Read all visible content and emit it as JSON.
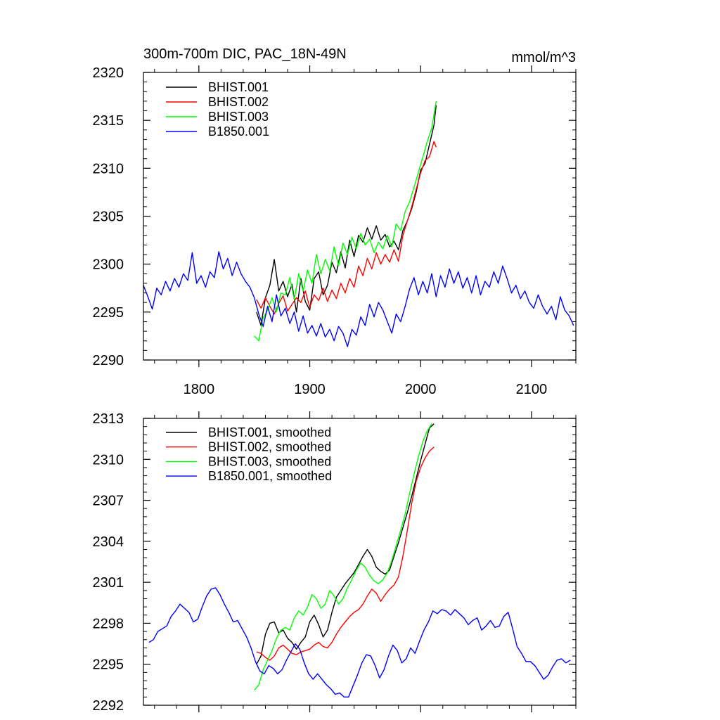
{
  "chart_data": [
    {
      "type": "line",
      "title": "300m-700m DIC, PAC_18N-49N",
      "units": "mmol/m^3",
      "xlim": [
        1750,
        2140
      ],
      "ylim": [
        2290,
        2320
      ],
      "xticks": [
        1800,
        1900,
        2000,
        2100
      ],
      "xtick_labels": [
        "1800",
        "1900",
        "2000",
        "2100"
      ],
      "yticks": [
        2290,
        2295,
        2300,
        2305,
        2310,
        2315,
        2320
      ],
      "ytick_labels": [
        "2290",
        "2295",
        "2300",
        "2305",
        "2310",
        "2315",
        "2320"
      ],
      "legend_position": "top-left",
      "series": [
        {
          "name": "BHIST.001",
          "color": "#000000",
          "x": [
            1852,
            1856,
            1860,
            1864,
            1868,
            1872,
            1876,
            1880,
            1884,
            1888,
            1892,
            1896,
            1900,
            1904,
            1908,
            1912,
            1916,
            1920,
            1924,
            1928,
            1932,
            1936,
            1940,
            1944,
            1948,
            1952,
            1956,
            1960,
            1964,
            1968,
            1972,
            1976,
            1980,
            1984,
            1988,
            1992,
            1996,
            2000,
            2004,
            2008,
            2012,
            2014
          ],
          "y": [
            2295.0,
            2293.6,
            2296.5,
            2297.8,
            2300.5,
            2297.2,
            2298.2,
            2296.6,
            2297.9,
            2295.0,
            2298.5,
            2296.1,
            2295.2,
            2298.5,
            2299.2,
            2296.8,
            2297.8,
            2300.2,
            2299.1,
            2301.3,
            2299.6,
            2302.5,
            2300.8,
            2303.0,
            2302.3,
            2303.8,
            2302.6,
            2304.0,
            2302.5,
            2303.1,
            2301.8,
            2302.4,
            2301.5,
            2303.5,
            2304.5,
            2305.8,
            2307.5,
            2309.8,
            2310.5,
            2312.5,
            2314.5,
            2316.6
          ]
        },
        {
          "name": "BHIST.002",
          "color": "#ff0000",
          "x": [
            1852,
            1856,
            1860,
            1864,
            1868,
            1872,
            1876,
            1880,
            1884,
            1888,
            1892,
            1896,
            1900,
            1904,
            1908,
            1912,
            1916,
            1920,
            1924,
            1928,
            1932,
            1936,
            1940,
            1944,
            1948,
            1952,
            1956,
            1960,
            1964,
            1968,
            1972,
            1976,
            1980,
            1984,
            1988,
            1992,
            1996,
            2000,
            2004,
            2008,
            2012,
            2014
          ],
          "y": [
            2296.3,
            2295.4,
            2296.5,
            2295.6,
            2294.8,
            2295.9,
            2296.7,
            2295.1,
            2295.8,
            2296.5,
            2296.0,
            2297.2,
            2295.5,
            2296.8,
            2296.2,
            2297.5,
            2296.1,
            2297.3,
            2296.4,
            2298.0,
            2297.0,
            2298.5,
            2297.6,
            2299.8,
            2298.8,
            2300.6,
            2299.5,
            2301.2,
            2300.0,
            2301.0,
            2300.2,
            2301.5,
            2300.3,
            2303.0,
            2304.5,
            2306.0,
            2307.8,
            2309.5,
            2310.8,
            2311.2,
            2312.8,
            2312.2
          ]
        },
        {
          "name": "BHIST.003",
          "color": "#00ff00",
          "x": [
            1850,
            1854,
            1858,
            1862,
            1866,
            1870,
            1874,
            1878,
            1882,
            1886,
            1890,
            1894,
            1898,
            1902,
            1906,
            1910,
            1914,
            1918,
            1922,
            1926,
            1930,
            1934,
            1938,
            1942,
            1946,
            1950,
            1954,
            1958,
            1962,
            1966,
            1970,
            1974,
            1978,
            1982,
            1986,
            1990,
            1994,
            1998,
            2002,
            2006,
            2010,
            2014
          ],
          "y": [
            2292.5,
            2292.0,
            2294.4,
            2295.2,
            2296.5,
            2295.0,
            2297.0,
            2296.8,
            2298.6,
            2296.3,
            2299.0,
            2297.2,
            2299.4,
            2298.0,
            2301.0,
            2299.0,
            2300.5,
            2299.3,
            2301.8,
            2299.8,
            2302.2,
            2301.0,
            2302.8,
            2301.6,
            2303.2,
            2302.0,
            2302.6,
            2301.2,
            2302.3,
            2301.6,
            2303.0,
            2301.8,
            2304.2,
            2303.5,
            2305.5,
            2306.5,
            2308.0,
            2309.6,
            2311.2,
            2312.8,
            2314.2,
            2317.0
          ]
        },
        {
          "name": "B1850.001",
          "color": "#0000ff",
          "x": [
            1750,
            1754,
            1758,
            1762,
            1766,
            1770,
            1774,
            1778,
            1782,
            1786,
            1790,
            1794,
            1798,
            1802,
            1806,
            1810,
            1814,
            1818,
            1822,
            1826,
            1830,
            1834,
            1838,
            1842,
            1846,
            1850,
            1854,
            1858,
            1862,
            1866,
            1870,
            1874,
            1878,
            1882,
            1886,
            1890,
            1894,
            1898,
            1902,
            1906,
            1910,
            1914,
            1918,
            1922,
            1926,
            1930,
            1934,
            1938,
            1942,
            1946,
            1950,
            1954,
            1958,
            1962,
            1966,
            1970,
            1974,
            1978,
            1982,
            1986,
            1990,
            1994,
            1998,
            2002,
            2006,
            2010,
            2014,
            2018,
            2022,
            2026,
            2030,
            2034,
            2038,
            2042,
            2046,
            2050,
            2054,
            2058,
            2062,
            2066,
            2070,
            2074,
            2078,
            2082,
            2086,
            2090,
            2094,
            2098,
            2102,
            2106,
            2110,
            2114,
            2118,
            2122,
            2126,
            2130,
            2134,
            2138
          ],
          "y": [
            2297.8,
            2296.6,
            2295.3,
            2297.5,
            2296.8,
            2298.2,
            2297.2,
            2298.5,
            2297.6,
            2299.0,
            2298.3,
            2301.2,
            2298.0,
            2298.8,
            2297.6,
            2299.2,
            2298.6,
            2301.3,
            2299.5,
            2300.6,
            2298.8,
            2300.2,
            2299.0,
            2298.2,
            2297.6,
            2296.5,
            2294.8,
            2293.5,
            2295.6,
            2294.0,
            2296.8,
            2294.6,
            2295.4,
            2293.8,
            2295.0,
            2293.0,
            2294.6,
            2292.8,
            2293.6,
            2292.5,
            2293.8,
            2292.4,
            2293.2,
            2292.0,
            2293.5,
            2292.8,
            2291.4,
            2293.2,
            2292.6,
            2294.5,
            2293.6,
            2295.8,
            2294.5,
            2296.0,
            2295.2,
            2294.0,
            2292.8,
            2294.8,
            2294.0,
            2295.6,
            2297.4,
            2298.6,
            2296.8,
            2298.2,
            2297.0,
            2299.0,
            2296.6,
            2298.8,
            2297.6,
            2299.5,
            2298.0,
            2299.2,
            2297.5,
            2298.6,
            2297.0,
            2298.8,
            2296.8,
            2298.2,
            2297.6,
            2299.2,
            2298.0,
            2299.8,
            2298.5,
            2297.0,
            2297.8,
            2296.4,
            2297.2,
            2296.0,
            2295.4,
            2296.8,
            2295.6,
            2294.8,
            2295.6,
            2294.2,
            2296.6,
            2295.2,
            2294.6,
            2293.6
          ]
        }
      ]
    },
    {
      "type": "line",
      "title": "",
      "units": "",
      "xlim": [
        1750,
        2140
      ],
      "ylim": [
        2292,
        2313
      ],
      "xticks": [
        1800,
        1900,
        2000,
        2100
      ],
      "xtick_labels": [],
      "yticks": [
        2292,
        2295,
        2298,
        2301,
        2304,
        2307,
        2310,
        2313
      ],
      "ytick_labels": [
        "2292",
        "2295",
        "2298",
        "2301",
        "2304",
        "2307",
        "2310",
        "2313"
      ],
      "legend_position": "top-left",
      "series": [
        {
          "name": "BHIST.001, smoothed",
          "color": "#000000",
          "x": [
            1852,
            1856,
            1860,
            1864,
            1868,
            1872,
            1876,
            1880,
            1884,
            1888,
            1892,
            1896,
            1900,
            1904,
            1908,
            1912,
            1916,
            1920,
            1924,
            1928,
            1932,
            1936,
            1940,
            1944,
            1948,
            1952,
            1956,
            1960,
            1964,
            1968,
            1972,
            1976,
            1980,
            1984,
            1988,
            1992,
            1996,
            2000,
            2004,
            2008,
            2012
          ],
          "y": [
            2295.0,
            2295.6,
            2297.2,
            2298.0,
            2298.1,
            2297.3,
            2297.5,
            2296.9,
            2296.6,
            2296.1,
            2296.6,
            2297.0,
            2298.1,
            2298.6,
            2297.9,
            2297.0,
            2297.5,
            2298.8,
            2299.9,
            2300.4,
            2300.9,
            2301.3,
            2301.7,
            2302.3,
            2302.9,
            2303.4,
            2302.9,
            2302.1,
            2301.8,
            2301.6,
            2301.9,
            2302.9,
            2303.9,
            2305.0,
            2306.1,
            2307.3,
            2308.6,
            2309.9,
            2311.1,
            2312.3,
            2312.6
          ]
        },
        {
          "name": "BHIST.002, smoothed",
          "color": "#ff0000",
          "x": [
            1852,
            1856,
            1860,
            1864,
            1868,
            1872,
            1876,
            1880,
            1884,
            1888,
            1892,
            1896,
            1900,
            1904,
            1908,
            1912,
            1916,
            1920,
            1924,
            1928,
            1932,
            1936,
            1940,
            1944,
            1948,
            1952,
            1956,
            1960,
            1964,
            1968,
            1972,
            1976,
            1980,
            1984,
            1988,
            1992,
            1996,
            2000,
            2004,
            2008,
            2012
          ],
          "y": [
            2295.9,
            2295.8,
            2295.5,
            2295.3,
            2295.6,
            2296.2,
            2296.4,
            2296.1,
            2295.8,
            2295.7,
            2295.9,
            2296.0,
            2296.1,
            2296.4,
            2296.6,
            2296.3,
            2296.2,
            2296.6,
            2297.2,
            2297.7,
            2298.1,
            2298.5,
            2298.8,
            2299.0,
            2299.4,
            2300.0,
            2300.5,
            2300.2,
            2299.6,
            2300.1,
            2300.5,
            2300.8,
            2301.4,
            2302.9,
            2304.8,
            2306.8,
            2308.4,
            2309.4,
            2310.1,
            2310.6,
            2310.9
          ]
        },
        {
          "name": "BHIST.003, smoothed",
          "color": "#00ff00",
          "x": [
            1850,
            1854,
            1858,
            1862,
            1866,
            1870,
            1874,
            1878,
            1882,
            1886,
            1890,
            1894,
            1898,
            1902,
            1906,
            1910,
            1914,
            1918,
            1922,
            1926,
            1930,
            1934,
            1938,
            1942,
            1946,
            1950,
            1954,
            1958,
            1962,
            1966,
            1970,
            1974,
            1978,
            1982,
            1986,
            1990,
            1994,
            1998,
            2002,
            2006,
            2010
          ],
          "y": [
            2293.1,
            2293.5,
            2294.6,
            2295.3,
            2296.0,
            2296.9,
            2297.5,
            2297.7,
            2297.5,
            2298.4,
            2298.9,
            2298.6,
            2299.2,
            2300.1,
            2299.8,
            2299.1,
            2299.4,
            2300.4,
            2300.0,
            2299.4,
            2299.8,
            2300.6,
            2301.2,
            2301.9,
            2302.4,
            2302.1,
            2301.5,
            2301.1,
            2300.9,
            2301.2,
            2301.7,
            2302.6,
            2303.7,
            2304.8,
            2306.0,
            2307.5,
            2308.9,
            2310.2,
            2311.3,
            2312.1,
            2312.6
          ]
        },
        {
          "name": "B1850.001, smoothed",
          "color": "#0000ff",
          "x": [
            1755,
            1759,
            1763,
            1767,
            1771,
            1775,
            1779,
            1783,
            1787,
            1791,
            1795,
            1799,
            1803,
            1807,
            1811,
            1815,
            1819,
            1823,
            1827,
            1831,
            1835,
            1839,
            1843,
            1847,
            1851,
            1855,
            1859,
            1863,
            1867,
            1871,
            1875,
            1879,
            1883,
            1887,
            1891,
            1895,
            1899,
            1903,
            1907,
            1911,
            1915,
            1919,
            1923,
            1927,
            1931,
            1935,
            1939,
            1943,
            1947,
            1951,
            1955,
            1959,
            1963,
            1967,
            1971,
            1975,
            1979,
            1983,
            1987,
            1991,
            1995,
            1999,
            2003,
            2007,
            2011,
            2015,
            2019,
            2023,
            2027,
            2031,
            2035,
            2039,
            2043,
            2047,
            2051,
            2055,
            2059,
            2063,
            2067,
            2071,
            2075,
            2079,
            2083,
            2087,
            2091,
            2095,
            2099,
            2103,
            2107,
            2111,
            2115,
            2119,
            2123,
            2127,
            2131,
            2135
          ],
          "y": [
            2296.6,
            2296.8,
            2297.4,
            2297.6,
            2297.8,
            2298.5,
            2298.9,
            2299.4,
            2299.1,
            2298.8,
            2298.1,
            2298.3,
            2299.2,
            2300.0,
            2300.5,
            2300.6,
            2300.1,
            2299.4,
            2298.8,
            2298.1,
            2298.2,
            2297.6,
            2297.0,
            2296.2,
            2295.2,
            2294.5,
            2294.3,
            2294.9,
            2294.7,
            2294.3,
            2294.6,
            2295.3,
            2295.9,
            2296.5,
            2296.1,
            2295.1,
            2294.3,
            2293.9,
            2294.3,
            2293.9,
            2293.5,
            2293.2,
            2292.8,
            2292.9,
            2292.6,
            2292.6,
            2293.4,
            2294.2,
            2295.1,
            2295.7,
            2295.6,
            2294.9,
            2294.0,
            2294.6,
            2295.6,
            2296.4,
            2296.0,
            2295.1,
            2295.4,
            2296.2,
            2295.8,
            2296.7,
            2297.5,
            2298.1,
            2298.9,
            2298.7,
            2299.0,
            2298.9,
            2298.6,
            2299.0,
            2298.7,
            2298.4,
            2297.9,
            2298.2,
            2298.4,
            2297.5,
            2297.8,
            2298.2,
            2297.7,
            2297.8,
            2298.5,
            2298.8,
            2297.6,
            2296.3,
            2295.8,
            2295.2,
            2295.2,
            2294.9,
            2294.4,
            2293.9,
            2294.2,
            2294.8,
            2295.3,
            2295.4,
            2295.1,
            2295.3
          ]
        }
      ]
    }
  ]
}
